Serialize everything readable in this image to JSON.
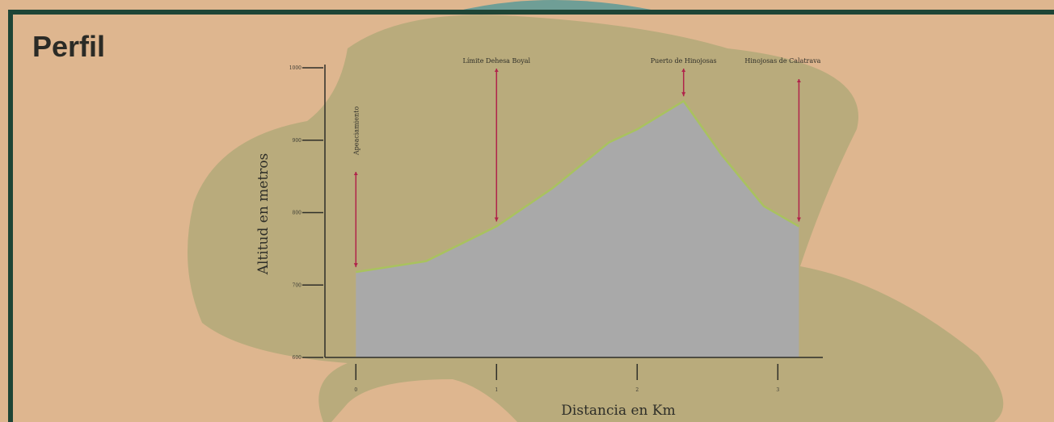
{
  "chart_data": {
    "type": "area",
    "title": "Perfil",
    "x_label": "Distancia en Km",
    "y_label": "Altitud en metros",
    "x": [
      0,
      0.5,
      1,
      1.4,
      1.8,
      2,
      2.33,
      2.6,
      2.9,
      3.15
    ],
    "values": [
      718,
      733,
      781,
      834,
      897,
      915,
      954,
      880,
      809,
      781
    ],
    "color": "#a9a9a9",
    "line_color": "#a9c25e",
    "annotation_color": "#b0234a",
    "xlim": [
      -0.22,
      3.32
    ],
    "xticks": [
      0,
      1,
      2,
      3
    ],
    "ylim": [
      600,
      1000
    ],
    "yticks": [
      600,
      700,
      800,
      900,
      1000
    ],
    "annotations": [
      {
        "text": "Apeaciamiento",
        "x": 0
      },
      {
        "text": "Límite Dehesa Boyal",
        "x": 1
      },
      {
        "text": "Puerto de Hinojosas",
        "x": 2.33
      },
      {
        "text": "Hinojosas de Calatrava",
        "x": 3.15
      }
    ]
  }
}
